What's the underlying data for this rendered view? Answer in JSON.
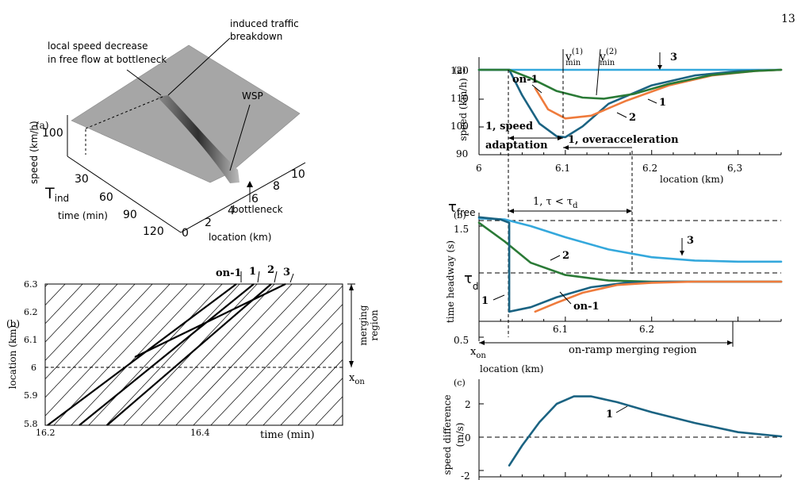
{
  "page_number": "13",
  "colors": {
    "teal": "#1b6382",
    "green": "#2a7a36",
    "orange": "#ef7b3c",
    "lightblue": "#34a8dc"
  },
  "fig_left_top": {
    "panel": "(a)",
    "annotations": {
      "local_speed_1": "local speed decrease",
      "local_speed_2": "in free flow at bottleneck",
      "induced_1": "induced traffic",
      "induced_2": "breakdown",
      "wsp": "WSP",
      "bottleneck": "bottleneck",
      "t_ind": "T",
      "t_ind_sub": "ind"
    },
    "speed_label": "speed (km/h)",
    "speed_tick": "100",
    "time_label": "time (min)",
    "time_ticks": [
      "30",
      "60",
      "90",
      "120"
    ],
    "location_label": "location (km)",
    "location_ticks": [
      "0",
      "2",
      "4",
      "6",
      "8",
      "10"
    ]
  },
  "fig_left_bottom": {
    "panel": "(b)",
    "ylabel": "location (km)",
    "yticks": [
      "6.3",
      "6.2",
      "6.1",
      "6",
      "5.9",
      "5.8"
    ],
    "xticks": [
      "16.2",
      "16.4"
    ],
    "xlabel": "time (min)",
    "top_labels": [
      "on-1",
      "1",
      "2",
      "3"
    ],
    "merging_1": "merging",
    "merging_2": "region",
    "x_on": "x",
    "x_on_sub": "on"
  },
  "chart_data": [
    {
      "type": "line",
      "panel": "(a)",
      "ylabel": "speed (km/h)",
      "xlabel": "location (km)",
      "xticks": [
        "6",
        "6.1",
        "6.2",
        "6,3"
      ],
      "yticks": [
        "90",
        "100",
        "110",
        "120"
      ],
      "xlim": [
        6.0,
        6.35
      ],
      "ylim": [
        90,
        122
      ],
      "series": [
        {
          "name": "3",
          "color": "#34a8dc",
          "x": [
            6.0,
            6.35
          ],
          "y": [
            120,
            120
          ]
        },
        {
          "name": "1",
          "color": "#1b6382",
          "x": [
            6.0,
            6.035,
            6.05,
            6.07,
            6.09,
            6.1,
            6.12,
            6.15,
            6.2,
            6.25,
            6.3,
            6.35
          ],
          "y": [
            120,
            120,
            111,
            101,
            96.5,
            96.2,
            100,
            108,
            114.5,
            118,
            119.5,
            120
          ]
        },
        {
          "name": "2",
          "color": "#ef7b3c",
          "x": [
            6.065,
            6.08,
            6.1,
            6.13,
            6.17,
            6.22,
            6.27,
            6.32,
            6.35
          ],
          "y": [
            113.5,
            106,
            102.8,
            103.8,
            109,
            114.5,
            118,
            119.6,
            120
          ]
        },
        {
          "name": "on-1",
          "color": "#2a7a36",
          "x": [
            6.0,
            6.035,
            6.06,
            6.09,
            6.12,
            6.145,
            6.18,
            6.22,
            6.27,
            6.32,
            6.35
          ],
          "y": [
            120,
            120,
            117,
            112.5,
            110.2,
            109.8,
            111.5,
            115,
            118.2,
            119.6,
            120
          ]
        }
      ],
      "annotations": {
        "on1": "on-1",
        "v1": "v",
        "v1_sub": "min",
        "v1_sup": "(1)",
        "v2": "v",
        "v2_sub": "min",
        "v2_sup": "(2)",
        "three": "3",
        "one": "1",
        "two": "2",
        "speed_adapt_1": "1, speed",
        "speed_adapt_2": "adaptation",
        "overaccel": "1, overacceleration"
      }
    },
    {
      "type": "line",
      "panel": "(b)",
      "ylabel": "time headway (s)",
      "xlabel": "location (km)",
      "xticks": [
        "6.1",
        "6.2"
      ],
      "yticks": [
        "1.5",
        "0.5"
      ],
      "xlim": [
        6.0,
        6.35
      ],
      "ylim": [
        0.5,
        1.65
      ],
      "series": [
        {
          "name": "3",
          "color": "#34a8dc",
          "x": [
            6.0,
            6.03,
            6.06,
            6.1,
            6.15,
            6.2,
            6.25,
            6.3,
            6.35
          ],
          "y": [
            1.57,
            1.56,
            1.5,
            1.4,
            1.29,
            1.22,
            1.19,
            1.18,
            1.18
          ]
        },
        {
          "name": "2",
          "color": "#2a7a36",
          "x": [
            6.0,
            6.03,
            6.06,
            6.1,
            6.15,
            6.2,
            6.25,
            6.35
          ],
          "y": [
            1.53,
            1.36,
            1.17,
            1.06,
            1.01,
            1.0,
            1.0,
            1.0
          ]
        },
        {
          "name": "1",
          "color": "#1b6382",
          "x": [
            6.0,
            6.025,
            6.035,
            6.035,
            6.06,
            6.09,
            6.13,
            6.17,
            6.22,
            6.35
          ],
          "y": [
            1.58,
            1.56,
            1.53,
            0.73,
            0.77,
            0.86,
            0.95,
            0.99,
            1.0,
            1.0
          ]
        },
        {
          "name": "on-1",
          "color": "#ef7b3c",
          "x": [
            6.065,
            6.09,
            6.12,
            6.16,
            6.2,
            6.25,
            6.35
          ],
          "y": [
            0.73,
            0.81,
            0.9,
            0.97,
            0.99,
            1.0,
            1.0
          ]
        }
      ],
      "annotations": {
        "tau_free": "τ",
        "tau_free_sub": "free",
        "tau_d": "τ",
        "tau_d_sub": "d",
        "interval": "1, τ < τ",
        "interval_sub": "d",
        "two": "2",
        "three": "3",
        "one": "1",
        "on1": "on-1",
        "x_on": "x",
        "x_on_sub": "on",
        "merge": "on-ramp merging region"
      }
    },
    {
      "type": "line",
      "panel": "(c)",
      "ylabel_1": "speed difference",
      "ylabel_2": "(m/s)",
      "yticks": [
        "2",
        "0",
        "-2"
      ],
      "xlim": [
        6.0,
        6.35
      ],
      "ylim": [
        -2.2,
        3.2
      ],
      "series": [
        {
          "name": "1",
          "color": "#1b6382",
          "x": [
            6.035,
            6.05,
            6.07,
            6.09,
            6.11,
            6.13,
            6.16,
            6.2,
            6.25,
            6.3,
            6.35
          ],
          "y": [
            -1.7,
            -0.5,
            0.9,
            2.0,
            2.45,
            2.45,
            2.1,
            1.5,
            0.85,
            0.3,
            0.05
          ]
        }
      ],
      "annotations": {
        "one": "1"
      }
    }
  ]
}
